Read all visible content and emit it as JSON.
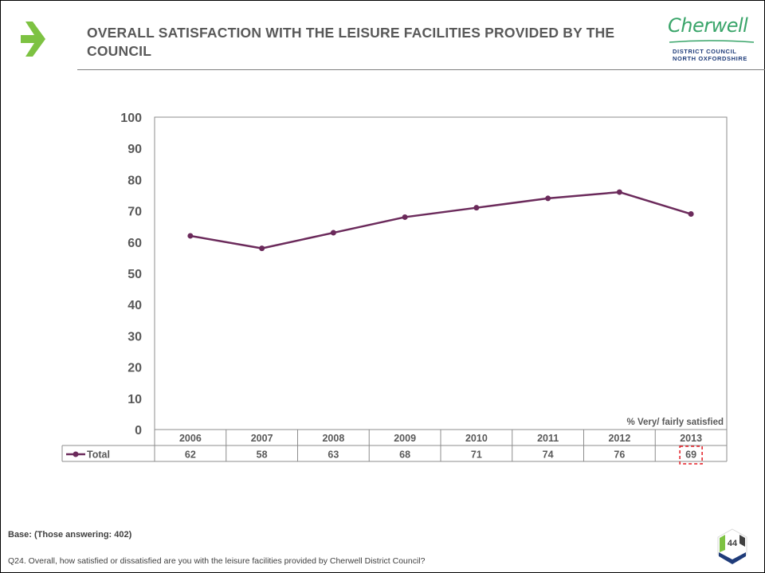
{
  "slide": {
    "title": "OVERALL SATISFACTION WITH THE LEISURE FACILITIES PROVIDED BY THE COUNCIL",
    "logo_word": "Cherwell",
    "logo_line1": "DISTRICT COUNCIL",
    "logo_line2": "NORTH OXFORDSHIRE",
    "base_note": "Base: (Those answering: 402)",
    "question": "Q24. Overall, how satisfied or dissatisfied are you with the leisure facilities provided by Cherwell District Council?",
    "page_number": "44",
    "colors": {
      "arrow": "#7dc242",
      "series": "#6b2a5b",
      "logo_green": "#3aa56a",
      "logo_blue": "#1f3c7a",
      "highlight_box": "#e31c24"
    }
  },
  "chart_data": {
    "type": "line",
    "categories": [
      "2006",
      "2007",
      "2008",
      "2009",
      "2010",
      "2011",
      "2012",
      "2013"
    ],
    "series": [
      {
        "name": "Total",
        "values": [
          62,
          58,
          63,
          68,
          71,
          74,
          76,
          69
        ]
      }
    ],
    "ylim": [
      0,
      100
    ],
    "yticks": [
      "0",
      "10",
      "20",
      "30",
      "40",
      "50",
      "60",
      "70",
      "80",
      "90",
      "100"
    ],
    "annotation": "% Very/ fairly satisfied",
    "highlighted_category": "2013",
    "data_table": true,
    "grid": false,
    "legend": "data-table"
  }
}
